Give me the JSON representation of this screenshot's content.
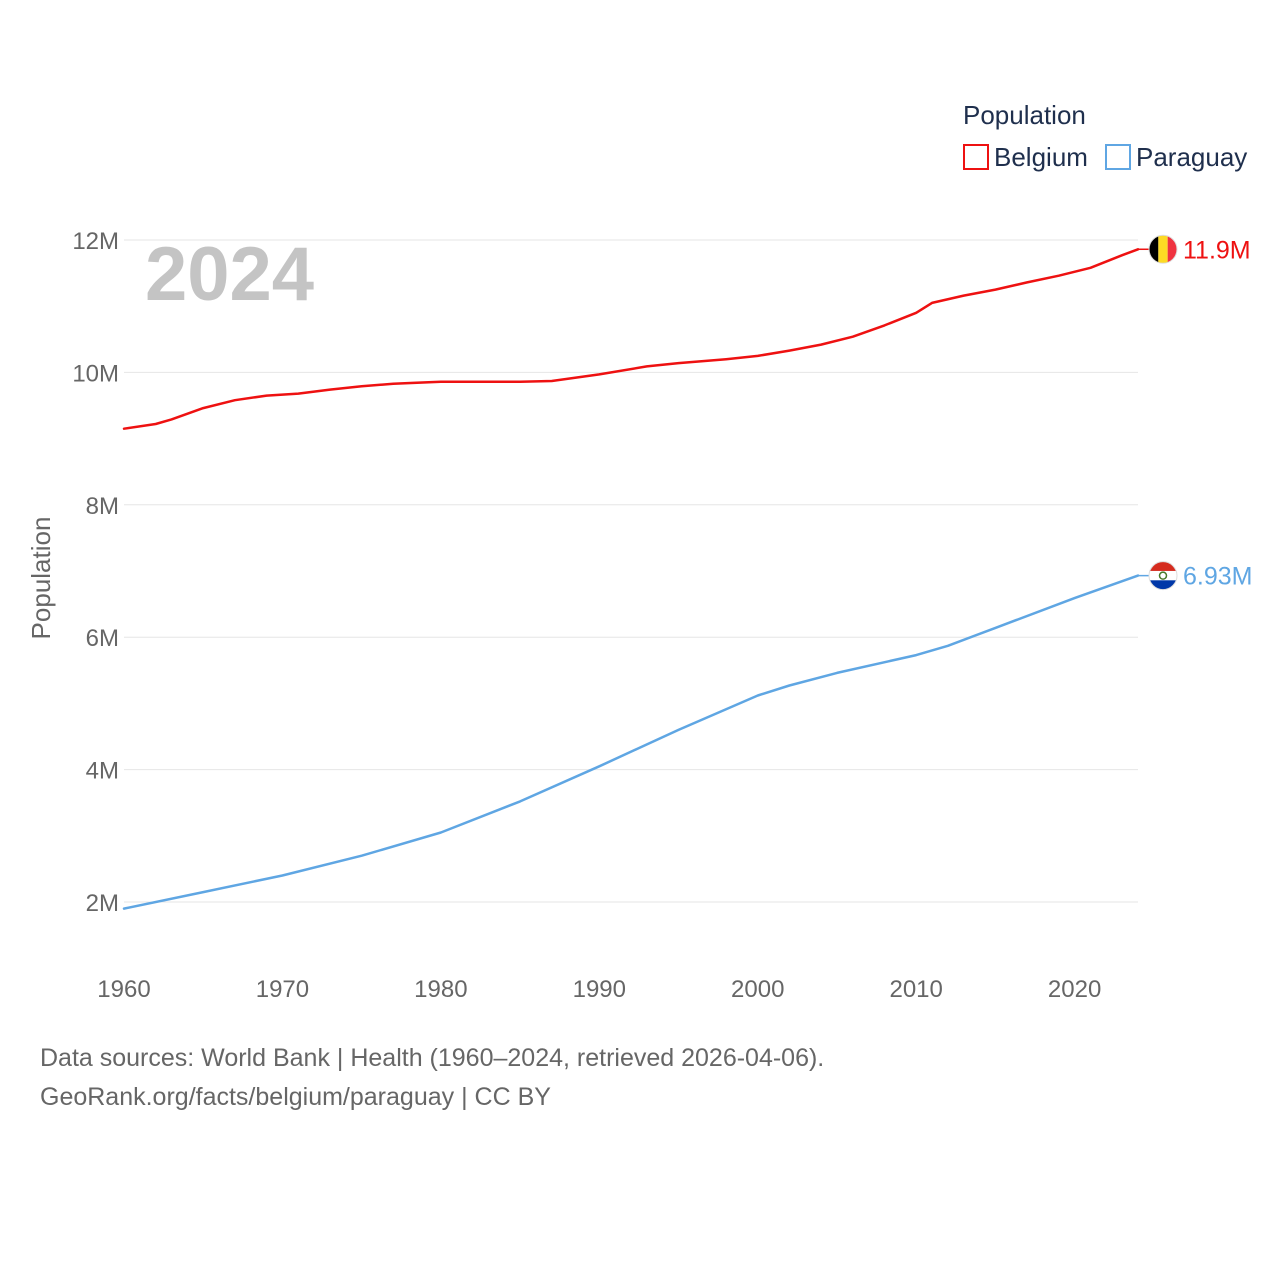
{
  "chart_data": {
    "type": "line",
    "year_badge": "2024",
    "ylabel": "Population",
    "xlabel": "",
    "ylim": [
      1000000,
      12500000
    ],
    "xlim": [
      1960,
      2024
    ],
    "y_ticks": [
      {
        "value": 2000000,
        "label": "2M"
      },
      {
        "value": 4000000,
        "label": "4M"
      },
      {
        "value": 6000000,
        "label": "6M"
      },
      {
        "value": 8000000,
        "label": "8M"
      },
      {
        "value": 10000000,
        "label": "10M"
      },
      {
        "value": 12000000,
        "label": "12M"
      }
    ],
    "x_ticks": [
      {
        "value": 1960,
        "label": "1960"
      },
      {
        "value": 1970,
        "label": "1970"
      },
      {
        "value": 1980,
        "label": "1980"
      },
      {
        "value": 1990,
        "label": "1990"
      },
      {
        "value": 2000,
        "label": "2000"
      },
      {
        "value": 2010,
        "label": "2010"
      },
      {
        "value": 2020,
        "label": "2020"
      }
    ],
    "legend": {
      "title": "Population",
      "position": "top-right"
    },
    "series": [
      {
        "name": "Belgium",
        "color": "#ee1111",
        "end_label": "11.9M",
        "flag": "belgium-flag",
        "x": [
          1960,
          1962,
          1963,
          1965,
          1967,
          1969,
          1971,
          1973,
          1975,
          1977,
          1980,
          1983,
          1985,
          1987,
          1990,
          1993,
          1995,
          1998,
          2000,
          2002,
          2004,
          2006,
          2008,
          2010,
          2011,
          2013,
          2015,
          2017,
          2019,
          2021,
          2023,
          2024
        ],
        "values": [
          9150000,
          9220000,
          9290000,
          9460000,
          9580000,
          9650000,
          9680000,
          9740000,
          9790000,
          9830000,
          9860000,
          9860000,
          9860000,
          9870000,
          9970000,
          10090000,
          10140000,
          10200000,
          10250000,
          10330000,
          10420000,
          10540000,
          10710000,
          10900000,
          11050000,
          11160000,
          11250000,
          11360000,
          11460000,
          11580000,
          11770000,
          11860000
        ]
      },
      {
        "name": "Paraguay",
        "color": "#5fa6e3",
        "end_label": "6.93M",
        "flag": "paraguay-flag",
        "x": [
          1960,
          1965,
          1970,
          1975,
          1980,
          1985,
          1990,
          1995,
          2000,
          2002,
          2005,
          2010,
          2012,
          2015,
          2020,
          2024
        ],
        "values": [
          1900000,
          2150000,
          2400000,
          2700000,
          3050000,
          3520000,
          4050000,
          4600000,
          5120000,
          5270000,
          5460000,
          5730000,
          5870000,
          6140000,
          6590000,
          6930000
        ]
      }
    ]
  },
  "footer": {
    "sources": "Data sources: World Bank | Health (1960–2024, retrieved 2026-04-06).",
    "attribution": "GeoRank.org/facts/belgium/paraguay | CC BY"
  }
}
